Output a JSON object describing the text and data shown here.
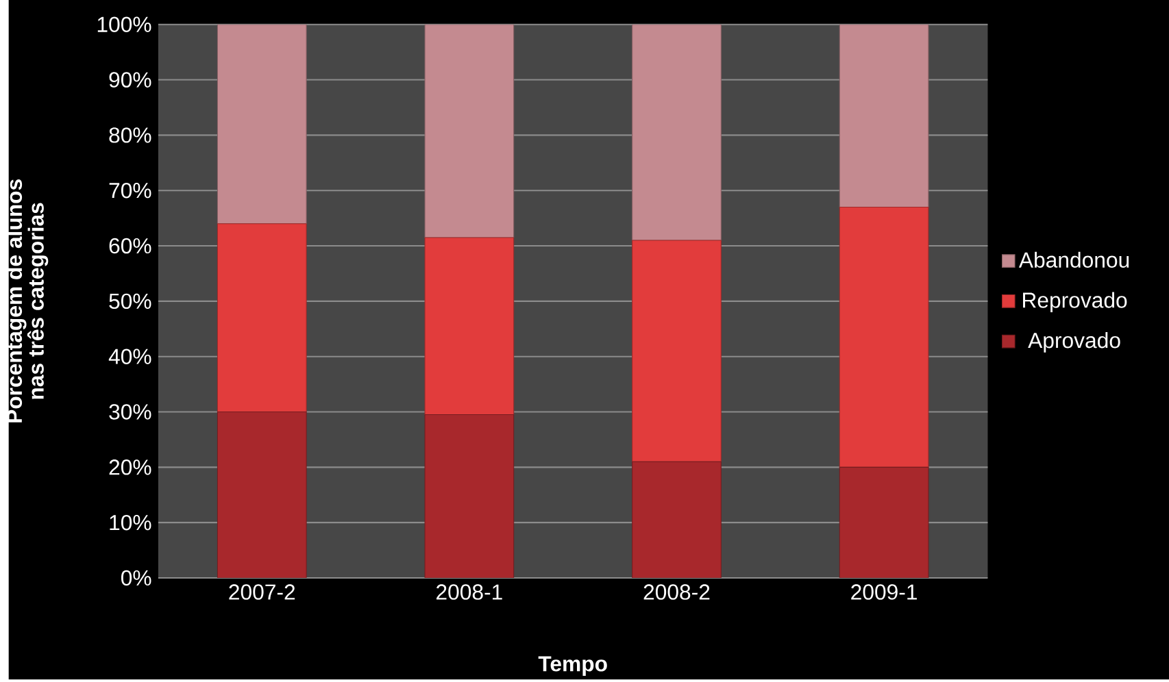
{
  "chart_data": {
    "type": "bar",
    "stacked": true,
    "xlabel": "Tempo",
    "ylabel": "Porcentagem de alunos nas três categorias",
    "categories": [
      "2007-2",
      "2008-1",
      "2008-2",
      "2009-1"
    ],
    "series": [
      {
        "name": "Aprovado",
        "color": "#a8282c",
        "values": [
          30,
          29.5,
          21,
          20
        ]
      },
      {
        "name": "Reprovado",
        "color": "#e23c3c",
        "values": [
          34,
          32,
          40,
          47
        ]
      },
      {
        "name": "Abandonou",
        "color": "#c48a90",
        "values": [
          36,
          38.5,
          39,
          33
        ]
      }
    ],
    "ylim": [
      0,
      100
    ],
    "yticks": [
      {
        "value": 0,
        "label": "0%"
      },
      {
        "value": 10,
        "label": "10%"
      },
      {
        "value": 20,
        "label": "20%"
      },
      {
        "value": 30,
        "label": "30%"
      },
      {
        "value": 40,
        "label": "40%"
      },
      {
        "value": 50,
        "label": "50%"
      },
      {
        "value": 60,
        "label": "60%"
      },
      {
        "value": 70,
        "label": "70%"
      },
      {
        "value": 80,
        "label": "80%"
      },
      {
        "value": 90,
        "label": "90%"
      },
      {
        "value": 100,
        "label": "100%"
      }
    ],
    "grid": "y",
    "legend": "right"
  }
}
